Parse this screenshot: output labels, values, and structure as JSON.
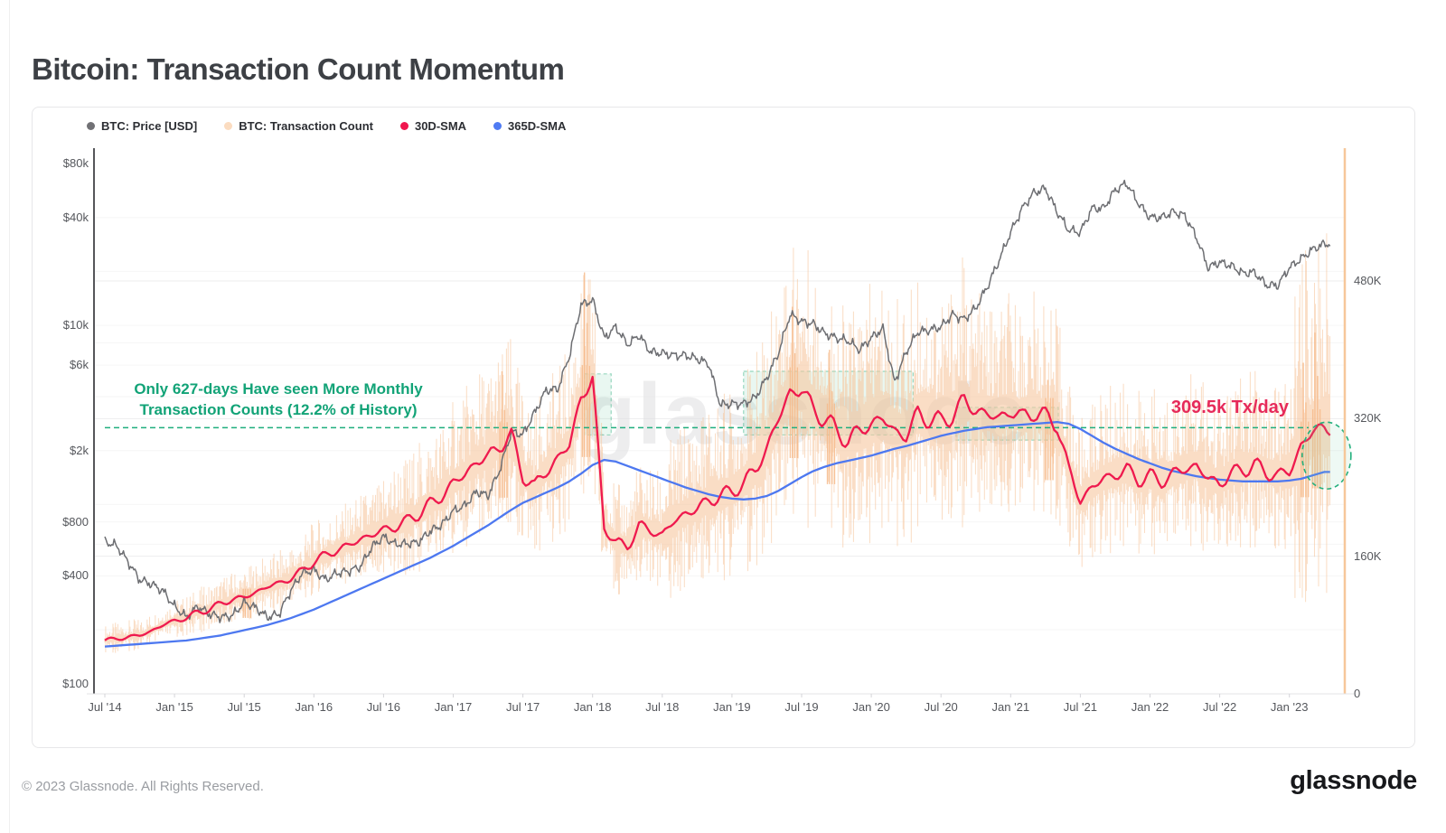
{
  "page": {
    "title": "Bitcoin: Transaction Count Momentum",
    "footer": "© 2023 Glassnode. All Rights Reserved.",
    "logo": "glassnode",
    "watermark": "glassnode"
  },
  "annotations": {
    "green_note_line1": "Only 627-days Have seen More Monthly",
    "green_note_line2": "Transaction Counts (12.2% of History)",
    "pink_label": "309.5k Tx/day"
  },
  "colors": {
    "price": "#6d6e72",
    "tx_count": "#f8c9a2",
    "sma30": "#ef1a4e",
    "sma365": "#4d78f0",
    "green_accent": "#16a97a",
    "pink_accent": "#e62a5a",
    "legend_dots": [
      "#717175",
      "#fbdcc0",
      "#f0164e",
      "#4f7bf3"
    ]
  },
  "chart_data": {
    "type": "line",
    "title": "Bitcoin: Transaction Count Momentum",
    "x_axis": {
      "start": "2014-07",
      "freq": "monthly",
      "count": 106,
      "ticks": [
        {
          "label": "Jul '14",
          "m": 0
        },
        {
          "label": "Jan '15",
          "m": 6
        },
        {
          "label": "Jul '15",
          "m": 12
        },
        {
          "label": "Jan '16",
          "m": 18
        },
        {
          "label": "Jul '16",
          "m": 24
        },
        {
          "label": "Jan '17",
          "m": 30
        },
        {
          "label": "Jul '17",
          "m": 36
        },
        {
          "label": "Jan '18",
          "m": 42
        },
        {
          "label": "Jul '18",
          "m": 48
        },
        {
          "label": "Jan '19",
          "m": 54
        },
        {
          "label": "Jul '19",
          "m": 60
        },
        {
          "label": "Jan '20",
          "m": 66
        },
        {
          "label": "Jul '20",
          "m": 72
        },
        {
          "label": "Jan '21",
          "m": 78
        },
        {
          "label": "Jul '21",
          "m": 84
        },
        {
          "label": "Jan '22",
          "m": 90
        },
        {
          "label": "Jul '22",
          "m": 96
        },
        {
          "label": "Jan '23",
          "m": 102
        }
      ]
    },
    "left_axis": {
      "scale": "log",
      "unit": "USD",
      "ticks": [
        {
          "label": "$80k",
          "v": 80000
        },
        {
          "label": "$40k",
          "v": 40000
        },
        {
          "label": "$10k",
          "v": 10000
        },
        {
          "label": "$6k",
          "v": 6000
        },
        {
          "label": "$2k",
          "v": 2000
        },
        {
          "label": "$800",
          "v": 800
        },
        {
          "label": "$400",
          "v": 400
        },
        {
          "label": "$100",
          "v": 100
        }
      ]
    },
    "right_axis": {
      "scale": "linear",
      "unit": "tx/day",
      "ticks": [
        {
          "label": "480K",
          "k": 480
        },
        {
          "label": "320K",
          "k": 320
        },
        {
          "label": "160K",
          "k": 160
        },
        {
          "label": "0",
          "k": 0
        }
      ]
    },
    "series": [
      {
        "name": "BTC: Price [USD]",
        "axis": "left",
        "type": "line",
        "color": "#6d6e72",
        "values": [
          620,
          590,
          480,
          380,
          360,
          330,
          270,
          235,
          270,
          245,
          235,
          240,
          285,
          265,
          235,
          245,
          330,
          415,
          430,
          380,
          415,
          425,
          450,
          580,
          660,
          600,
          605,
          615,
          710,
          770,
          920,
          985,
          1180,
          1120,
          1560,
          2550,
          2450,
          3250,
          4350,
          4400,
          6750,
          13000,
          13800,
          8500,
          9800,
          7800,
          8800,
          7100,
          7000,
          6800,
          6800,
          6500,
          6100,
          3600,
          3650,
          3650,
          3950,
          5100,
          7000,
          11500,
          10500,
          10200,
          9000,
          8500,
          8200,
          7300,
          8500,
          9600,
          4800,
          7100,
          9200,
          9400,
          9800,
          11500,
          10800,
          12500,
          16500,
          23000,
          33000,
          45000,
          55000,
          58000,
          43000,
          34000,
          33000,
          45000,
          45000,
          57000,
          62000,
          48000,
          40000,
          40000,
          43000,
          41000,
          31000,
          21000,
          22500,
          21500,
          19500,
          19800,
          16800,
          16700,
          21000,
          23500,
          26500,
          28500
        ]
      },
      {
        "name": "BTC: Transaction Count",
        "axis": "right",
        "type": "noisy-daily-band",
        "color": "#f8c9a2",
        "unit": "K tx/day",
        "band_center_ref": "30D-SMA",
        "band_pct": 0.3,
        "spikes": [
          {
            "m": 12.2,
            "k": 122
          },
          {
            "m": 34.3,
            "k": 375
          },
          {
            "m": 41.4,
            "k": 490
          },
          {
            "m": 59.3,
            "k": 450
          },
          {
            "m": 62.5,
            "k": 400
          },
          {
            "m": 81.3,
            "k": 365
          },
          {
            "m": 103.3,
            "k": 385
          },
          {
            "m": 104.3,
            "k": 420
          }
        ]
      },
      {
        "name": "30D-SMA",
        "axis": "right",
        "type": "line",
        "color": "#ef1a4e",
        "unit": "K tx/day",
        "values": [
          62,
          64,
          66,
          68,
          73,
          80,
          85,
          88,
          95,
          98,
          105,
          110,
          112,
          118,
          125,
          128,
          135,
          142,
          155,
          160,
          168,
          172,
          180,
          185,
          190,
          195,
          200,
          210,
          220,
          230,
          245,
          255,
          270,
          275,
          290,
          298,
          255,
          240,
          260,
          272,
          290,
          345,
          365,
          195,
          175,
          172,
          195,
          190,
          185,
          200,
          210,
          215,
          225,
          230,
          235,
          245,
          260,
          285,
          320,
          350,
          355,
          330,
          320,
          305,
          295,
          305,
          315,
          320,
          305,
          300,
          325,
          320,
          315,
          325,
          340,
          330,
          325,
          320,
          330,
          320,
          330,
          320,
          315,
          260,
          225,
          240,
          250,
          255,
          260,
          250,
          252,
          248,
          255,
          262,
          265,
          250,
          245,
          255,
          262,
          265,
          258,
          254,
          258,
          288,
          305,
          309.5
        ]
      },
      {
        "name": "365D-SMA",
        "axis": "right",
        "type": "line",
        "color": "#4d78f0",
        "unit": "K tx/day",
        "values": [
          55,
          56,
          57,
          58,
          59,
          60,
          61,
          62,
          64,
          66,
          68,
          71,
          74,
          77,
          80,
          84,
          88,
          93,
          98,
          104,
          110,
          116,
          122,
          128,
          134,
          140,
          146,
          152,
          158,
          165,
          172,
          180,
          188,
          196,
          205,
          214,
          222,
          228,
          234,
          240,
          247,
          256,
          266,
          272,
          270,
          265,
          260,
          255,
          250,
          245,
          240,
          236,
          232,
          229,
          227,
          226,
          227,
          230,
          236,
          244,
          252,
          259,
          264,
          268,
          271,
          274,
          277,
          281,
          285,
          288,
          292,
          296,
          300,
          303,
          306,
          308,
          310,
          311,
          312,
          313,
          314,
          315,
          316,
          314,
          308,
          300,
          292,
          285,
          279,
          273,
          268,
          263,
          259,
          256,
          253,
          251,
          249,
          248,
          247,
          247,
          247,
          247,
          248,
          250,
          254,
          258
        ]
      }
    ],
    "threshold": {
      "value_k": 309.5,
      "label": "309.5k Tx/day",
      "style": "dashed",
      "color": "#1fae7e"
    },
    "highlight_regions": [
      {
        "from_m": 41.3,
        "to_m": 43.6,
        "top_k": 372,
        "bottom_k": 301,
        "note": "Dec '17 – Feb '18"
      },
      {
        "from_m": 55.0,
        "to_m": 69.6,
        "top_k": 375,
        "bottom_k": 301,
        "note": "Feb '19 – Apr '20"
      },
      {
        "from_m": 73.3,
        "to_m": 82.1,
        "top_k": 333,
        "bottom_k": 295,
        "note": "Aug '20 – May '21"
      }
    ],
    "highlight_circle": {
      "m": 105.2,
      "k": 277,
      "note": "current momentum"
    }
  }
}
